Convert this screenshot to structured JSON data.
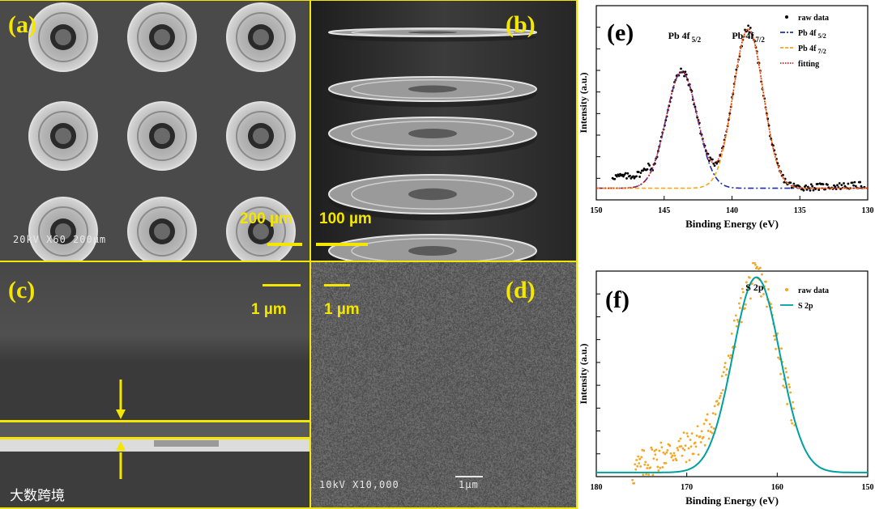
{
  "panels": {
    "a": {
      "label": "(a)",
      "scale_text": "200 µm",
      "sem_info": "20kV   X60  200µm"
    },
    "b": {
      "label": "(b)",
      "scale_text": "100 µm"
    },
    "c": {
      "label": "(c)",
      "scale_text": "1 µm"
    },
    "d": {
      "label": "(d)",
      "scale_text": "1 µm",
      "sem_info": "10kV   X10,000",
      "sem_scale": "1µm"
    },
    "e": {
      "label": "(e)"
    },
    "f": {
      "label": "(f)"
    }
  },
  "watermark": "大数跨境",
  "colors": {
    "yellow": "#f4e600",
    "teal": "#00a0a0",
    "orange": "#f5a623",
    "navy": "#1f2fa8",
    "red": "#e02020"
  },
  "chart_data": [
    {
      "id": "e",
      "type": "line",
      "title": "",
      "xlabel": "Binding Energy (eV)",
      "ylabel": "Intensity (a.u.)",
      "xlim": [
        150,
        130
      ],
      "xticks": [
        150,
        145,
        140,
        135,
        130
      ],
      "tick_labels": [
        "150",
        "145",
        "140",
        "135",
        "130"
      ],
      "annotations": [
        {
          "text": "Pb 4f",
          "sub": "5/2",
          "x": 143.5
        },
        {
          "text": "Pb 4f",
          "sub": "7/2",
          "x": 138.8
        }
      ],
      "legend": {
        "placement": "top-right",
        "entries": [
          {
            "label": "raw data",
            "sub": "",
            "style": "dots",
            "color": "#000000"
          },
          {
            "label": "Pb 4f",
            "sub": "5/2",
            "style": "dashdot",
            "color": "#1f2fa8"
          },
          {
            "label": "Pb 4f",
            "sub": "7/2",
            "style": "dash",
            "color": "#f5a623"
          },
          {
            "label": "fitting",
            "sub": "",
            "style": "dotted",
            "color": "#e02020"
          }
        ]
      },
      "model": {
        "baseline": 0.06,
        "peaks": [
          {
            "name": "Pb 4f 5/2",
            "center": 143.7,
            "sigma": 1.15,
            "height": 0.6
          },
          {
            "name": "Pb 4f 7/2",
            "center": 138.8,
            "sigma": 1.1,
            "height": 0.82
          }
        ],
        "raw_range": [
          148.8,
          130.2
        ]
      }
    },
    {
      "id": "f",
      "type": "scatter",
      "title": "",
      "xlabel": "Binding Energy (eV)",
      "ylabel": "Intensity (a.u.)",
      "xlim": [
        180,
        150
      ],
      "xticks": [
        180,
        170,
        160,
        150
      ],
      "tick_labels": [
        "180",
        "170",
        "160",
        "150"
      ],
      "annotations": [
        {
          "text": "S 2p",
          "sub": "",
          "x": 162.5
        }
      ],
      "legend": {
        "placement": "top-right",
        "entries": [
          {
            "label": "raw data",
            "sub": "",
            "style": "dots",
            "color": "#f5a623"
          },
          {
            "label": "S 2p",
            "sub": "",
            "style": "line",
            "color": "#00a0a0"
          }
        ]
      },
      "model": {
        "baseline": 0.02,
        "peaks": [
          {
            "name": "S 2p",
            "center": 162.3,
            "sigma": 2.6,
            "height": 0.95
          }
        ],
        "raw_range": [
          176,
          158
        ]
      }
    }
  ]
}
